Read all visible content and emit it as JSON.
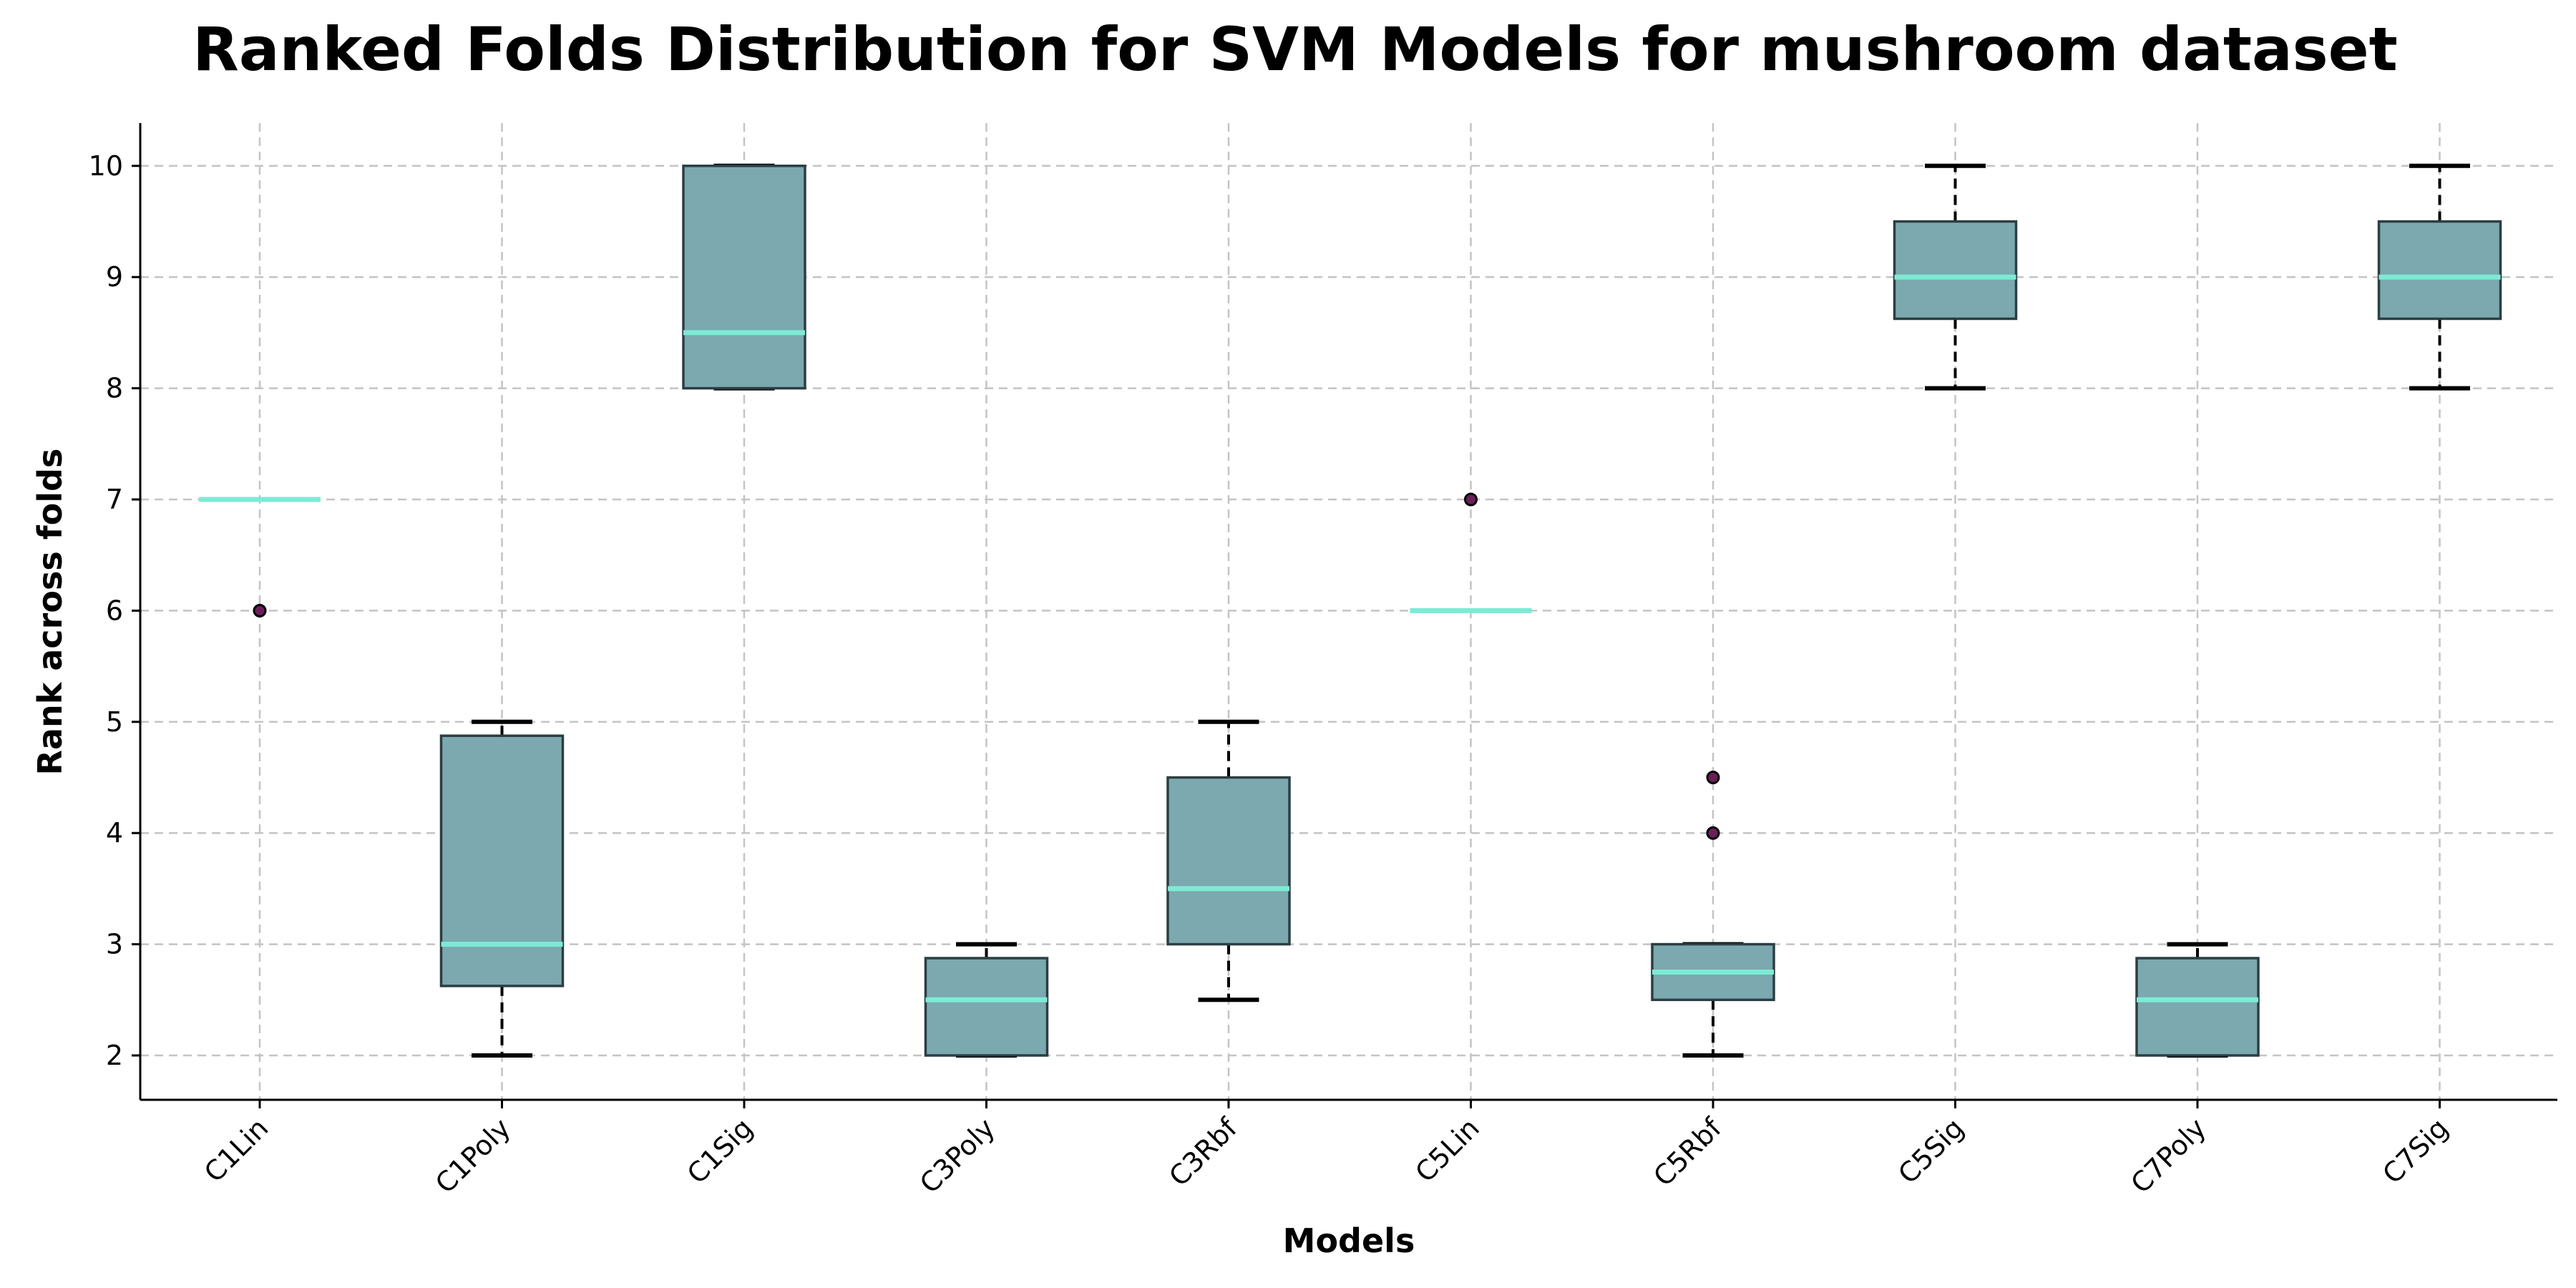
{
  "chart_data": {
    "type": "box",
    "title": "Ranked Folds Distribution for SVM Models for mushroom dataset",
    "xlabel": "Models",
    "ylabel": "Rank across folds",
    "ylim": [
      1.6,
      10.4
    ],
    "yticks": [
      2,
      3,
      4,
      5,
      6,
      7,
      8,
      9,
      10
    ],
    "grid": true,
    "colors": {
      "box_fill": "#7ba9af",
      "box_edge": "#2c3e42",
      "median": "#7debd4",
      "flier_fill": "#6b1f5a",
      "grid": "#c4c4c4"
    },
    "categories": [
      "C1Lin",
      "C1Poly",
      "C1Sig",
      "C3Poly",
      "C3Rbf",
      "C5Lin",
      "C5Rbf",
      "C5Sig",
      "C7Poly",
      "C7Sig"
    ],
    "boxes": [
      {
        "label": "C1Lin",
        "whislo": 7,
        "q1": 7,
        "med": 7,
        "q3": 7,
        "whishi": 7,
        "fliers": [
          6
        ]
      },
      {
        "label": "C1Poly",
        "whislo": 2,
        "q1": 2.625,
        "med": 3,
        "q3": 4.875,
        "whishi": 5,
        "fliers": []
      },
      {
        "label": "C1Sig",
        "whislo": 8,
        "q1": 8,
        "med": 8.5,
        "q3": 10,
        "whishi": 10,
        "fliers": []
      },
      {
        "label": "C3Poly",
        "whislo": 2,
        "q1": 2,
        "med": 2.5,
        "q3": 2.875,
        "whishi": 3,
        "fliers": []
      },
      {
        "label": "C3Rbf",
        "whislo": 2.5,
        "q1": 3,
        "med": 3.5,
        "q3": 4.5,
        "whishi": 5,
        "fliers": []
      },
      {
        "label": "C5Lin",
        "whislo": 6,
        "q1": 6,
        "med": 6,
        "q3": 6,
        "whishi": 6,
        "fliers": [
          7
        ]
      },
      {
        "label": "C5Rbf",
        "whislo": 2,
        "q1": 2.5,
        "med": 2.75,
        "q3": 3,
        "whishi": 3,
        "fliers": [
          4,
          4.5
        ]
      },
      {
        "label": "C5Sig",
        "whislo": 8,
        "q1": 8.625,
        "med": 9,
        "q3": 9.5,
        "whishi": 10,
        "fliers": []
      },
      {
        "label": "C7Poly",
        "whislo": 2,
        "q1": 2,
        "med": 2.5,
        "q3": 2.875,
        "whishi": 3,
        "fliers": []
      },
      {
        "label": "C7Sig",
        "whislo": 8,
        "q1": 8.625,
        "med": 9,
        "q3": 9.5,
        "whishi": 10,
        "fliers": []
      }
    ]
  }
}
